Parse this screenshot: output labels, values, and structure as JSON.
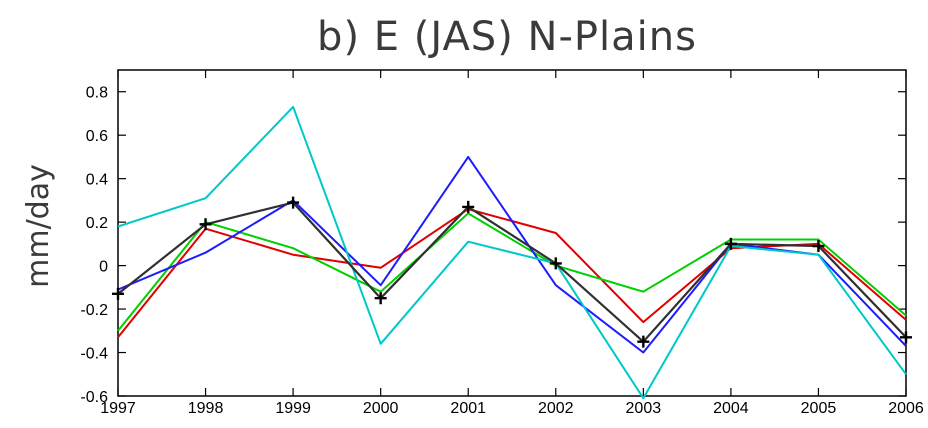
{
  "chart_data": {
    "type": "line",
    "title": "b)  E (JAS) N-Plains",
    "xlabel": "",
    "ylabel": "mm/day",
    "x": [
      1997,
      1998,
      1999,
      2000,
      2001,
      2002,
      2003,
      2004,
      2005,
      2006
    ],
    "x_tick_labels": [
      "1997",
      "1998",
      "1999",
      "2000",
      "2001",
      "2002",
      "2003",
      "2004",
      "2005",
      "2006"
    ],
    "ylim": [
      -0.6,
      0.9
    ],
    "y_ticks": [
      -0.6,
      -0.4,
      -0.2,
      0,
      0.2,
      0.4,
      0.6,
      0.8
    ],
    "y_tick_labels": [
      "-0.6",
      "-0.4",
      "-0.2",
      "0",
      "0.2",
      "0.4",
      "0.6",
      "0.8"
    ],
    "grid": false,
    "series": [
      {
        "color": "#e00000",
        "marker": "none",
        "values": [
          -0.33,
          0.17,
          0.05,
          -0.01,
          0.26,
          0.15,
          -0.26,
          0.08,
          0.1,
          -0.25
        ]
      },
      {
        "color": "#00d000",
        "marker": "none",
        "values": [
          -0.3,
          0.2,
          0.08,
          -0.12,
          0.24,
          0.0,
          -0.12,
          0.12,
          0.12,
          -0.23
        ]
      },
      {
        "color": "#1c1cff",
        "marker": "none",
        "values": [
          -0.11,
          0.06,
          0.3,
          -0.09,
          0.5,
          -0.09,
          -0.4,
          0.1,
          0.05,
          -0.37
        ]
      },
      {
        "color": "#00c8c8",
        "marker": "none",
        "values": [
          0.18,
          0.31,
          0.73,
          -0.36,
          0.11,
          0.01,
          -0.61,
          0.09,
          0.05,
          -0.5
        ]
      },
      {
        "color": "#303030",
        "marker": "plus",
        "values": [
          -0.13,
          0.19,
          0.29,
          -0.15,
          0.27,
          0.01,
          -0.35,
          0.1,
          0.09,
          -0.33
        ]
      }
    ]
  }
}
